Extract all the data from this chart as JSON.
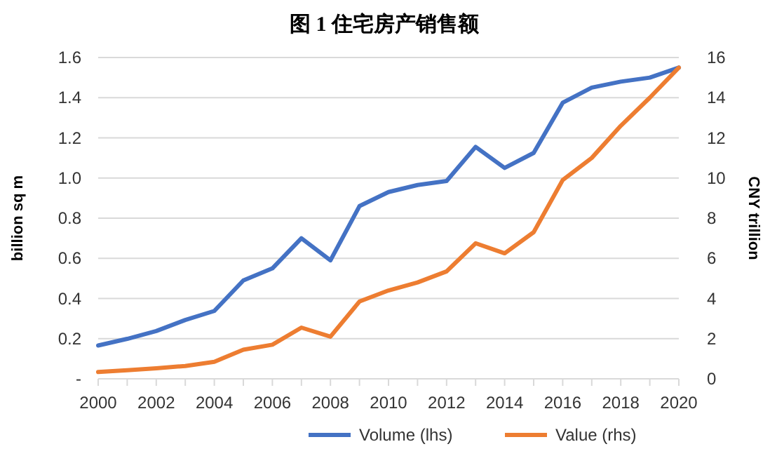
{
  "chart_data": {
    "type": "line",
    "title": "图 1  住宅房产销售额",
    "ylabel": "billion sq m",
    "y2label": "CNY trillion",
    "x": [
      2000,
      2001,
      2002,
      2003,
      2004,
      2005,
      2006,
      2007,
      2008,
      2009,
      2010,
      2011,
      2012,
      2013,
      2014,
      2015,
      2016,
      2017,
      2018,
      2019,
      2020
    ],
    "series": [
      {
        "name": "Volume (lhs)",
        "color": "#4472c4",
        "values": [
          0.166,
          0.199,
          0.238,
          0.293,
          0.338,
          0.49,
          0.55,
          0.7,
          0.59,
          0.86,
          0.93,
          0.965,
          0.985,
          1.155,
          1.05,
          1.125,
          1.375,
          1.45,
          1.48,
          1.5,
          1.55
        ]
      },
      {
        "name": "Value (rhs)",
        "color": "#ed7d31",
        "axis": "y2",
        "values": [
          0.34,
          0.43,
          0.52,
          0.64,
          0.85,
          1.45,
          1.7,
          2.55,
          2.1,
          3.85,
          4.4,
          4.8,
          5.35,
          6.75,
          6.25,
          7.3,
          9.9,
          11.0,
          12.6,
          14.0,
          15.5
        ]
      }
    ],
    "xlim": [
      2000,
      2020
    ],
    "xticks": [
      2000,
      {
        "value": 2001,
        "label": null
      },
      2002,
      {
        "value": 2003,
        "label": null
      },
      2004,
      {
        "value": 2005,
        "label": null
      },
      2006,
      {
        "value": 2007,
        "label": null
      },
      2008,
      {
        "value": 2009,
        "label": null
      },
      2010,
      {
        "value": 2011,
        "label": null
      },
      2012,
      {
        "value": 2013,
        "label": null
      },
      2014,
      {
        "value": 2015,
        "label": null
      },
      2016,
      {
        "value": 2017,
        "label": null
      },
      2018,
      {
        "value": 2019,
        "label": null
      },
      2020
    ],
    "ylim": [
      0,
      1.6
    ],
    "yticks": [
      {
        "value": 0,
        "label": "-"
      },
      0.2,
      0.4,
      0.6,
      0.8,
      "1.0",
      1.2,
      1.4,
      1.6
    ],
    "y2lim": [
      0,
      16
    ],
    "y2ticks": [
      0,
      2,
      4,
      6,
      8,
      10,
      12,
      14,
      16
    ],
    "grid": "y",
    "legend": "bottom",
    "marker": "none",
    "line_style": "solid"
  }
}
